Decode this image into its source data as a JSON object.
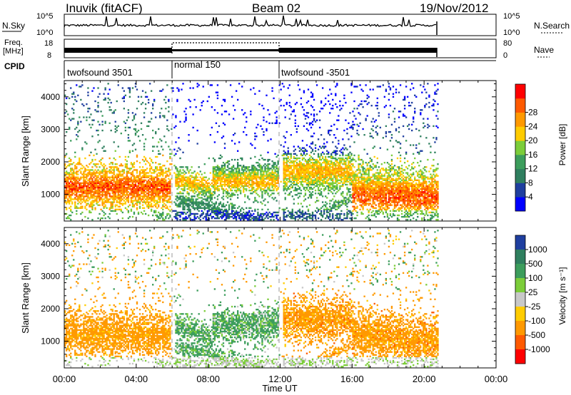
{
  "header": {
    "station": "Inuvik (fitACF)",
    "beam": "Beam 02",
    "date": "19/Nov/2012"
  },
  "noise_panel": {
    "left_label": "N.Sky",
    "right_label": "N.Search",
    "left_ticks": [
      "10^5",
      "10^0"
    ],
    "right_ticks": [
      "10^5",
      "10^0"
    ]
  },
  "freq_panel": {
    "left_label_1": "Freq.",
    "left_label_2": "[MHz]",
    "right_label": "Nave",
    "left_ticks": [
      "18",
      "8"
    ],
    "right_ticks": [
      "80",
      "0"
    ]
  },
  "cpid_panel": {
    "label": "CPID",
    "segments": [
      "twofsound 3501",
      "normal 150",
      "twofsound -3501"
    ]
  },
  "colors": {
    "red": "#ff0000",
    "orange_red": "#ff5a00",
    "orange": "#ff9900",
    "yellow": "#ffcc00",
    "light_green": "#7ccd3a",
    "green": "#3c9d5c",
    "teal": "#2f7f5f",
    "dark_blue": "#1f3f9f",
    "blue": "#0000ff",
    "grey": "#c8c8c8"
  },
  "chart_data": [
    {
      "type": "heatmap",
      "parameter": "Power",
      "ylabel": "Slant Range [km]",
      "xlabel": "Time UT",
      "x_ticks": [
        "00:00",
        "04:00",
        "08:00",
        "12:00",
        "16:00",
        "20:00",
        "00:00"
      ],
      "xlim_hours": [
        0,
        24
      ],
      "y_ticks": [
        1000,
        2000,
        3000,
        4000
      ],
      "ylim_km": [
        180,
        4500
      ],
      "colorbar_label": "Power [dB]",
      "colorbar_ticks": [
        4,
        8,
        12,
        16,
        20,
        24,
        28
      ],
      "data_end_hour": 20.75,
      "dominant_bands": [
        {
          "t": [
            0,
            6
          ],
          "range_km": [
            700,
            1600
          ],
          "value_db": 26
        },
        {
          "t": [
            8.5,
            10
          ],
          "range_km": [
            1000,
            1700
          ],
          "value_db": 24
        },
        {
          "t": [
            12,
            16
          ],
          "range_km": [
            1300,
            2100
          ],
          "value_db": 22
        },
        {
          "t": [
            16,
            20.75
          ],
          "range_km": [
            500,
            1600
          ],
          "value_db": 28
        }
      ]
    },
    {
      "type": "heatmap",
      "parameter": "Velocity",
      "ylabel": "Slant Range [km]",
      "xlabel": "Time UT",
      "x_ticks": [
        "00:00",
        "04:00",
        "08:00",
        "12:00",
        "16:00",
        "20:00",
        "00:00"
      ],
      "xlim_hours": [
        0,
        24
      ],
      "y_ticks": [
        1000,
        2000,
        3000,
        4000
      ],
      "ylim_km": [
        180,
        4500
      ],
      "colorbar_label": "Velocity [m s⁻¹]",
      "colorbar_ticks": [
        1000,
        500,
        100,
        25,
        -25,
        -100,
        -500,
        -1000
      ],
      "data_end_hour": 20.75,
      "dominant_bands": [
        {
          "t": [
            0,
            6
          ],
          "range_km": [
            600,
            1700
          ],
          "value_ms": -300
        },
        {
          "t": [
            6,
            12
          ],
          "range_km": [
            800,
            2100
          ],
          "value_ms": 150
        },
        {
          "t": [
            12,
            20.75
          ],
          "range_km": [
            500,
            2200
          ],
          "value_ms": -300
        }
      ]
    }
  ]
}
